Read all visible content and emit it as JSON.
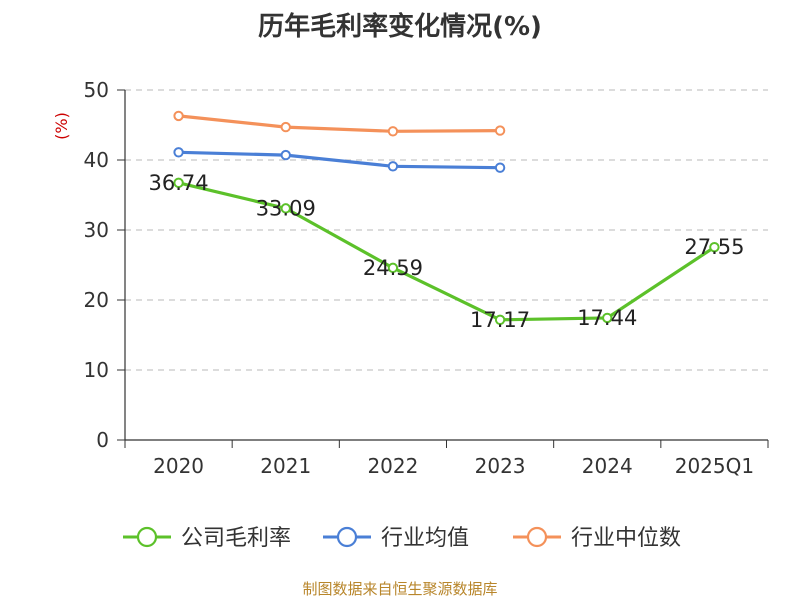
{
  "title": "历年毛利率变化情况(%)",
  "footer": "制图数据来自恒生聚源数据库",
  "chart_data": {
    "type": "line",
    "title": "历年毛利率变化情况(%)",
    "ylabel": "(%)",
    "ylim": [
      0,
      50
    ],
    "yticks": [
      0,
      10,
      20,
      30,
      40,
      50
    ],
    "grid": true,
    "legend_position": "bottom",
    "categories": [
      "2020",
      "2021",
      "2022",
      "2023",
      "2024",
      "2025Q1"
    ],
    "series": [
      {
        "name": "公司毛利率",
        "color": "#5cc12a",
        "values": [
          36.74,
          33.09,
          24.59,
          17.17,
          17.44,
          27.55
        ],
        "labels": [
          "36.74",
          "33.09",
          "24.59",
          "17.17",
          "17.44",
          "27.55"
        ]
      },
      {
        "name": "行业均值",
        "color": "#4a7fd6",
        "values": [
          41.1,
          40.7,
          39.1,
          38.9,
          null,
          null
        ]
      },
      {
        "name": "行业中位数",
        "color": "#f4915a",
        "values": [
          46.3,
          44.7,
          44.1,
          44.2,
          null,
          null
        ]
      }
    ]
  }
}
